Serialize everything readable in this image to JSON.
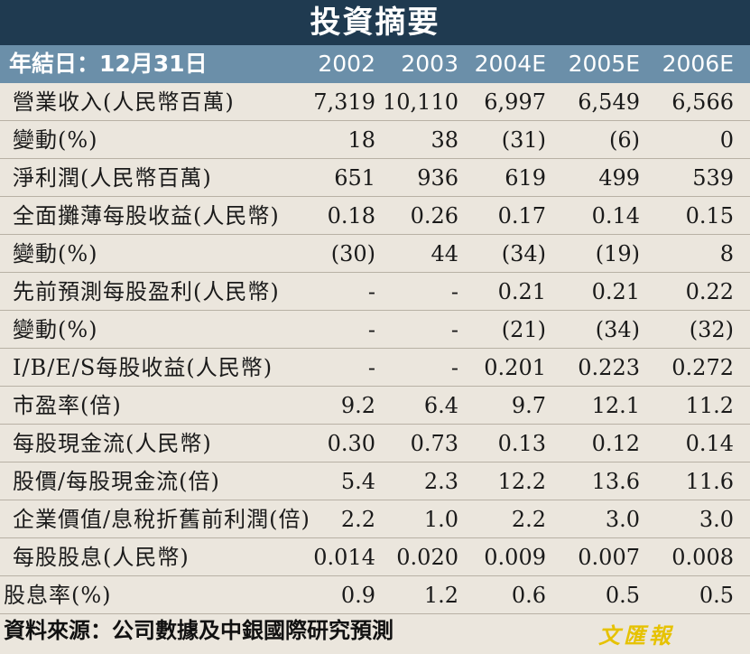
{
  "title": "投資摘要",
  "header": {
    "label": "年結日：12月31日",
    "years": [
      "2002",
      "2003",
      "2004E",
      "2005E",
      "2006E"
    ]
  },
  "rows": [
    {
      "label": "營業收入(人民幣百萬)",
      "values": [
        "7,319",
        "10,110",
        "6,997",
        "6,549",
        "6,566"
      ]
    },
    {
      "label": "變動(%)",
      "values": [
        "18",
        "38",
        "(31)",
        "(6)",
        "0"
      ]
    },
    {
      "label": "淨利潤(人民幣百萬)",
      "values": [
        "651",
        "936",
        "619",
        "499",
        "539"
      ]
    },
    {
      "label": "全面攤薄每股收益(人民幣)",
      "values": [
        "0.18",
        "0.26",
        "0.17",
        "0.14",
        "0.15"
      ]
    },
    {
      "label": "變動(%)",
      "values": [
        "(30)",
        "44",
        "(34)",
        "(19)",
        "8"
      ]
    },
    {
      "label": "先前預測每股盈利(人民幣)",
      "values": [
        "-",
        "-",
        "0.21",
        "0.21",
        "0.22"
      ]
    },
    {
      "label": "變動(%)",
      "values": [
        "-",
        "-",
        "(21)",
        "(34)",
        "(32)"
      ]
    },
    {
      "label": "I/B/E/S每股收益(人民幣)",
      "values": [
        "-",
        "-",
        "0.201",
        "0.223",
        "0.272"
      ]
    },
    {
      "label": "市盈率(倍)",
      "values": [
        "9.2",
        "6.4",
        "9.7",
        "12.1",
        "11.2"
      ]
    },
    {
      "label": "每股現金流(人民幣)",
      "values": [
        "0.30",
        "0.73",
        "0.13",
        "0.12",
        "0.14"
      ]
    },
    {
      "label": "股價/每股現金流(倍)",
      "values": [
        "5.4",
        "2.3",
        "12.2",
        "13.6",
        "11.6"
      ]
    },
    {
      "label": "企業價值/息稅折舊前利潤(倍)",
      "values": [
        "2.2",
        "1.0",
        "2.2",
        "3.0",
        "3.0"
      ]
    },
    {
      "label": "每股股息(人民幣)",
      "values": [
        "0.014",
        "0.020",
        "0.009",
        "0.007",
        "0.008"
      ]
    },
    {
      "label": "股息率(%)",
      "values": [
        "0.9",
        "1.2",
        "0.6",
        "0.5",
        "0.5"
      ]
    }
  ],
  "source": "資料來源：公司數據及中銀國際研究預測",
  "logo_text": "文匯報",
  "colors": {
    "title_bg": "#1f3a50",
    "header_bg": "#6b8fa9",
    "body_bg": "#ebe6dd",
    "logo": "#e6c200"
  }
}
